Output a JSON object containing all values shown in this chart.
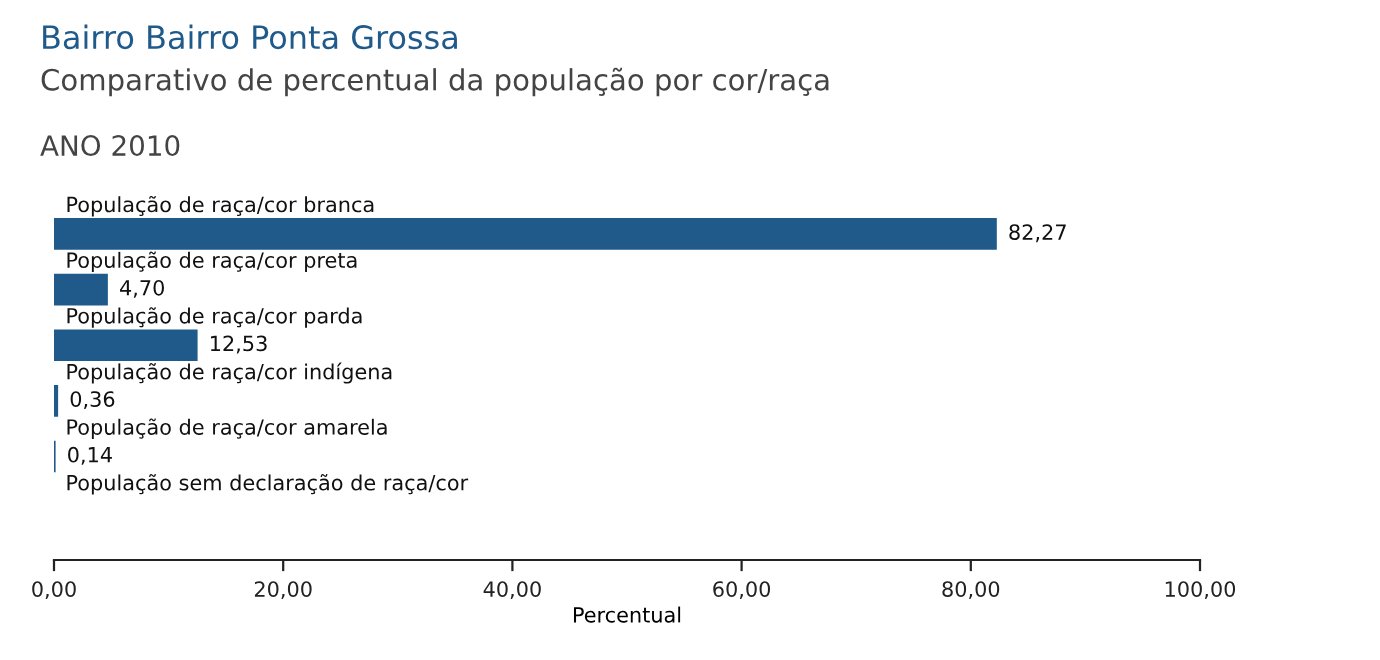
{
  "chart_data": {
    "type": "bar",
    "orientation": "horizontal",
    "title": "Bairro Bairro Ponta Grossa",
    "subtitle": "Comparativo de percentual da população por cor/raça",
    "annotations": [
      "ANO 2010"
    ],
    "categories": [
      "População de raça/cor branca",
      "População de raça/cor preta",
      "População de raça/cor parda",
      "População de raça/cor indígena",
      "População de raça/cor amarela",
      "População sem declaração de raça/cor"
    ],
    "values": [
      82.27,
      4.7,
      12.53,
      0.36,
      0.14,
      null
    ],
    "value_labels": [
      "82,27",
      "4,70",
      "12,53",
      "0,36",
      "0,14",
      null
    ],
    "color": "#1f5a8a",
    "xlabel": "Percentual",
    "xlim": [
      0,
      100
    ],
    "xticks": [
      {
        "value": 0,
        "label": "0,00"
      },
      {
        "value": 20,
        "label": "20,00"
      },
      {
        "value": 40,
        "label": "40,00"
      },
      {
        "value": 60,
        "label": "60,00"
      },
      {
        "value": 80,
        "label": "80,00"
      },
      {
        "value": 100,
        "label": "100,00"
      }
    ],
    "grid": false,
    "legend": false
  }
}
